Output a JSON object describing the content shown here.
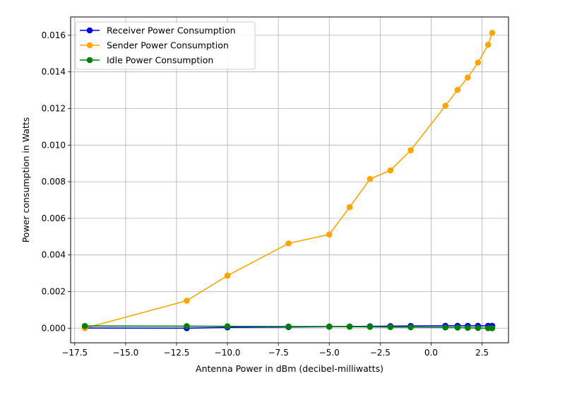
{
  "chart_data": {
    "type": "line",
    "title": "",
    "xlabel": "Antenna Power in dBm (decibel-milliwatts)",
    "ylabel": "Power consumption in Watts",
    "xlim": [
      -17.7,
      3.8
    ],
    "ylim": [
      -0.0008,
      0.017
    ],
    "xticks": [
      -17.5,
      -15.0,
      -12.5,
      -10.0,
      -7.5,
      -5.0,
      -2.5,
      0.0,
      2.5
    ],
    "xtick_labels": [
      "−17.5",
      "−15.0",
      "−12.5",
      "−10.0",
      "−7.5",
      "−5.0",
      "−2.5",
      "0.0",
      "2.5"
    ],
    "yticks": [
      0.0,
      0.002,
      0.004,
      0.006,
      0.008,
      0.01,
      0.012,
      0.014,
      0.016
    ],
    "ytick_labels": [
      "0.000",
      "0.002",
      "0.004",
      "0.006",
      "0.008",
      "0.010",
      "0.012",
      "0.014",
      "0.016"
    ],
    "grid": true,
    "legend_position": "top-left",
    "x": [
      -17,
      -12,
      -10,
      -7,
      -5,
      -4,
      -3,
      -2,
      -1,
      0.7,
      1.3,
      1.8,
      2.3,
      2.8,
      3.0
    ],
    "series": [
      {
        "name": "Receiver Power Consumption",
        "color": "#0000ff",
        "values": [
          1e-05,
          0.0,
          4e-05,
          6e-05,
          8e-05,
          9e-05,
          0.0001,
          0.00011,
          0.00012,
          0.00013,
          0.00013,
          0.00013,
          0.00013,
          0.00013,
          0.00013
        ]
      },
      {
        "name": "Sender Power Consumption",
        "color": "#ffa500",
        "values": [
          0.0,
          0.0015,
          0.00287,
          0.00463,
          0.00512,
          0.00661,
          0.00815,
          0.00862,
          0.00972,
          0.01215,
          0.01302,
          0.01369,
          0.01451,
          0.01548,
          0.01613
        ]
      },
      {
        "name": "Idle Power Consumption",
        "color": "#008000",
        "values": [
          0.00012,
          0.00011,
          0.0001,
          9e-05,
          9e-05,
          8e-05,
          7e-05,
          6e-05,
          5e-05,
          4e-05,
          3e-05,
          2e-05,
          1e-05,
          0.0,
          0.0
        ]
      }
    ]
  }
}
